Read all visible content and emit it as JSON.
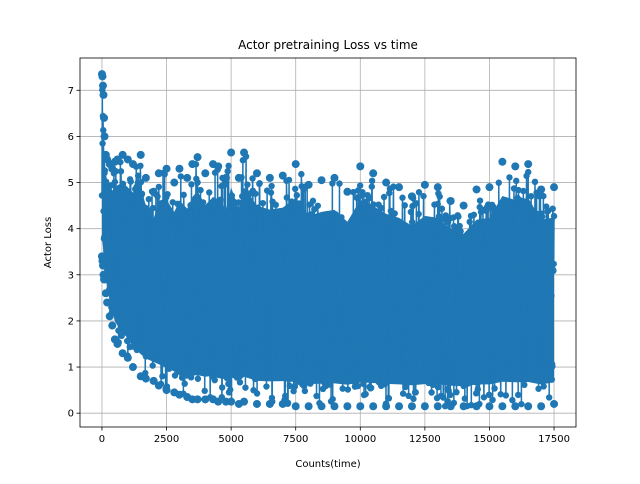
{
  "chart_data": {
    "type": "line",
    "title": "Actor pretraining Loss vs time",
    "xlabel": "Counts(time)",
    "ylabel": "Actor Loss",
    "xlim": [
      -850,
      18350
    ],
    "ylim": [
      -0.3,
      7.7
    ],
    "xticks": [
      0,
      2500,
      5000,
      7500,
      10000,
      12500,
      15000,
      17500
    ],
    "xtick_labels": [
      "0",
      "2500",
      "5000",
      "7500",
      "10000",
      "12500",
      "15000",
      "17500"
    ],
    "yticks": [
      0,
      1,
      2,
      3,
      4,
      5,
      6,
      7
    ],
    "ytick_labels": [
      "0",
      "1",
      "2",
      "3",
      "4",
      "5",
      "6",
      "7"
    ],
    "grid": true,
    "marker": "circle",
    "series": [
      {
        "name": "",
        "color": "#1f77b4",
        "x_range": [
          0,
          17500
        ],
        "points": 17501,
        "x": [
          0,
          20,
          40,
          60,
          80,
          100,
          150,
          200,
          300,
          400,
          500,
          600,
          800,
          1000,
          1200,
          1500,
          1700,
          2000,
          2200,
          2500,
          2800,
          3000,
          3300,
          3500,
          3700,
          4000,
          4300,
          4500,
          4800,
          5000,
          5300,
          5500,
          6000,
          6500,
          7000,
          7500,
          8000,
          8500,
          9000,
          9500,
          10000,
          10500,
          11000,
          11500,
          12000,
          12500,
          13000,
          13500,
          14000,
          14500,
          15000,
          15500,
          16000,
          16500,
          17000,
          17500
        ],
        "upper": [
          7.35,
          7.3,
          7.1,
          6.9,
          6.4,
          6.0,
          5.6,
          5.5,
          5.4,
          5.3,
          5.45,
          5.5,
          5.6,
          5.5,
          5.4,
          5.6,
          5.1,
          4.8,
          5.2,
          5.3,
          5.0,
          5.3,
          5.1,
          5.4,
          5.55,
          5.2,
          5.4,
          5.35,
          5.1,
          5.65,
          5.1,
          5.65,
          5.2,
          5.1,
          5.15,
          5.4,
          4.95,
          5.05,
          5.1,
          4.8,
          5.35,
          5.2,
          5.0,
          4.9,
          4.7,
          4.95,
          4.9,
          4.6,
          4.5,
          4.85,
          4.9,
          5.45,
          5.35,
          5.4,
          4.85,
          4.9
        ],
        "lower": [
          3.4,
          3.3,
          3.2,
          3.0,
          2.9,
          2.9,
          2.6,
          2.4,
          2.1,
          1.9,
          1.6,
          1.5,
          1.3,
          1.2,
          1.0,
          0.8,
          0.75,
          0.7,
          0.6,
          0.5,
          0.45,
          0.4,
          0.35,
          0.3,
          0.3,
          0.3,
          0.3,
          0.25,
          0.25,
          0.25,
          0.2,
          0.25,
          0.2,
          0.2,
          0.2,
          0.15,
          0.15,
          0.15,
          0.15,
          0.15,
          0.15,
          0.15,
          0.15,
          0.15,
          0.15,
          0.15,
          0.15,
          0.15,
          0.15,
          0.15,
          0.15,
          0.15,
          0.15,
          0.15,
          0.15,
          0.2
        ]
      }
    ]
  }
}
